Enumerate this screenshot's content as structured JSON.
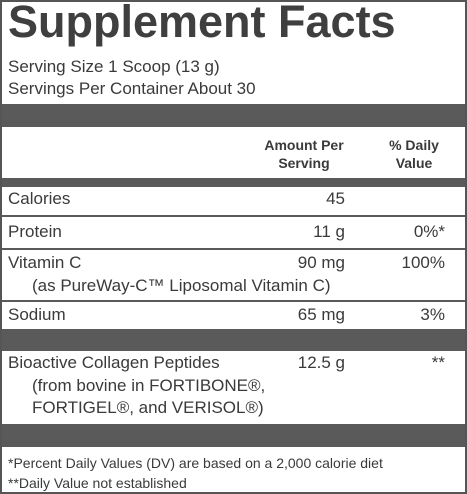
{
  "title": "Supplement Facts",
  "serving_size": "Serving Size 1 Scoop (13 g)",
  "servings_per_container": "Servings Per Container About 30",
  "header": {
    "amount": "Amount Per Serving",
    "daily_value": "% Daily Value"
  },
  "rows": [
    {
      "name": "Calories",
      "amount": "45"
    },
    {
      "name": "Protein",
      "amount": "11 g",
      "daily_value": "0%*"
    },
    {
      "name": "Vitamin C",
      "amount": "90 mg",
      "daily_value": "100%",
      "note": "(as PureWay-C™ Liposomal Vitamin C)"
    },
    {
      "name": "Sodium",
      "amount": "65 mg",
      "daily_value": "3%"
    },
    {
      "name": "Bioactive Collagen Peptides",
      "amount": "12.5 g",
      "daily_value": "**",
      "note": "(from bovine in FORTIBONE®, FORTIGEL®, and VERISOL®)"
    }
  ],
  "footnotes": [
    "*Percent Daily Values (DV) are based on a 2,000 calorie diet",
    "**Daily Value not established"
  ]
}
